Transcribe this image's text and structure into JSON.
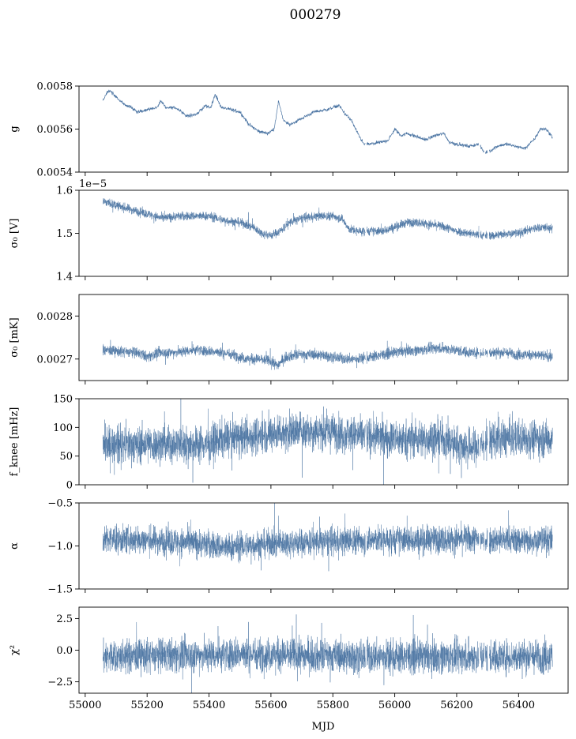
{
  "title": "000279",
  "xlabel": "MJD",
  "line_color": "#4c75a3",
  "chart_data": {
    "type": "line",
    "title": "000279",
    "xlabel": "MJD",
    "xlim": [
      54980,
      56560
    ],
    "xticks": [
      55000,
      55200,
      55400,
      55600,
      55800,
      56000,
      56200,
      56400
    ],
    "xtick_labels": [
      "55000",
      "55200",
      "55400",
      "55600",
      "55800",
      "56000",
      "56200",
      "56400"
    ],
    "x_range": [
      55057,
      56510
    ],
    "gaps": [
      [
        55905,
        55909
      ],
      [
        56272,
        56276
      ],
      [
        56289,
        56292
      ],
      [
        56300,
        56305
      ]
    ],
    "panels": [
      {
        "name": "g",
        "ylabel": "g",
        "ylim": [
          0.0054,
          0.0058
        ],
        "yticks": [
          0.0054,
          0.0056,
          0.0058
        ],
        "ytick_labels": [
          "0.0054",
          "0.0056",
          "0.0058"
        ],
        "offset_text": "",
        "noise": 4e-06,
        "keypoints": [
          [
            55057,
            0.00573
          ],
          [
            55070,
            0.00577
          ],
          [
            55080,
            0.00578
          ],
          [
            55100,
            0.00575
          ],
          [
            55130,
            0.00571
          ],
          [
            55150,
            0.0057
          ],
          [
            55170,
            0.00568
          ],
          [
            55200,
            0.00569
          ],
          [
            55230,
            0.0057
          ],
          [
            55245,
            0.00573
          ],
          [
            55260,
            0.0057
          ],
          [
            55290,
            0.0057
          ],
          [
            55310,
            0.00568
          ],
          [
            55330,
            0.00566
          ],
          [
            55360,
            0.00567
          ],
          [
            55390,
            0.00571
          ],
          [
            55405,
            0.0057
          ],
          [
            55420,
            0.00576
          ],
          [
            55440,
            0.0057
          ],
          [
            55470,
            0.00569
          ],
          [
            55500,
            0.00568
          ],
          [
            55530,
            0.00562
          ],
          [
            55560,
            0.00559
          ],
          [
            55590,
            0.00558
          ],
          [
            55610,
            0.0056
          ],
          [
            55625,
            0.00573
          ],
          [
            55640,
            0.00564
          ],
          [
            55660,
            0.00562
          ],
          [
            55700,
            0.00565
          ],
          [
            55740,
            0.00568
          ],
          [
            55780,
            0.00569
          ],
          [
            55820,
            0.00571
          ],
          [
            55840,
            0.00567
          ],
          [
            55860,
            0.00564
          ],
          [
            55880,
            0.00558
          ],
          [
            55900,
            0.00553
          ],
          [
            55920,
            0.00553
          ],
          [
            55960,
            0.00554
          ],
          [
            55980,
            0.00555
          ],
          [
            56000,
            0.0056
          ],
          [
            56020,
            0.00557
          ],
          [
            56040,
            0.00558
          ],
          [
            56060,
            0.00557
          ],
          [
            56080,
            0.00556
          ],
          [
            56100,
            0.00555
          ],
          [
            56130,
            0.00557
          ],
          [
            56160,
            0.00558
          ],
          [
            56175,
            0.00554
          ],
          [
            56200,
            0.00553
          ],
          [
            56240,
            0.00552
          ],
          [
            56270,
            0.00553
          ],
          [
            56290,
            0.00549
          ],
          [
            56310,
            0.0055
          ],
          [
            56330,
            0.00552
          ],
          [
            56360,
            0.00553
          ],
          [
            56390,
            0.00552
          ],
          [
            56420,
            0.00551
          ],
          [
            56450,
            0.00555
          ],
          [
            56470,
            0.0056
          ],
          [
            56490,
            0.0056
          ],
          [
            56510,
            0.00556
          ]
        ]
      },
      {
        "name": "sigma0-volts",
        "ylabel": "σ₀ [V]",
        "ylim": [
          1.4,
          1.6
        ],
        "yticks": [
          1.4,
          1.5,
          1.6
        ],
        "ytick_labels": [
          "1.4",
          "1.5",
          "1.6"
        ],
        "offset_text": "1e−5",
        "noise": 0.005,
        "keypoints": [
          [
            55057,
            1.575
          ],
          [
            55100,
            1.565
          ],
          [
            55150,
            1.555
          ],
          [
            55200,
            1.545
          ],
          [
            55250,
            1.535
          ],
          [
            55300,
            1.54
          ],
          [
            55350,
            1.54
          ],
          [
            55400,
            1.54
          ],
          [
            55450,
            1.53
          ],
          [
            55500,
            1.525
          ],
          [
            55540,
            1.515
          ],
          [
            55570,
            1.5
          ],
          [
            55600,
            1.495
          ],
          [
            55630,
            1.505
          ],
          [
            55660,
            1.525
          ],
          [
            55700,
            1.535
          ],
          [
            55750,
            1.54
          ],
          [
            55800,
            1.54
          ],
          [
            55830,
            1.535
          ],
          [
            55850,
            1.51
          ],
          [
            55880,
            1.505
          ],
          [
            55920,
            1.505
          ],
          [
            55960,
            1.505
          ],
          [
            56000,
            1.515
          ],
          [
            56040,
            1.525
          ],
          [
            56080,
            1.525
          ],
          [
            56120,
            1.52
          ],
          [
            56160,
            1.515
          ],
          [
            56200,
            1.505
          ],
          [
            56240,
            1.5
          ],
          [
            56280,
            1.495
          ],
          [
            56320,
            1.495
          ],
          [
            56360,
            1.5
          ],
          [
            56400,
            1.5
          ],
          [
            56440,
            1.51
          ],
          [
            56480,
            1.515
          ],
          [
            56510,
            1.51
          ]
        ]
      },
      {
        "name": "sigma0-mk",
        "ylabel": "σ₀ [mK]",
        "ylim": [
          0.00265,
          0.00285
        ],
        "yticks": [
          0.0027,
          0.0028
        ],
        "ytick_labels": [
          "0.0027",
          "0.0028"
        ],
        "offset_text": "",
        "noise": 6e-06,
        "keypoints": [
          [
            55057,
            0.002722
          ],
          [
            55100,
            0.002718
          ],
          [
            55150,
            0.002716
          ],
          [
            55180,
            0.002712
          ],
          [
            55200,
            0.002705
          ],
          [
            55240,
            0.002715
          ],
          [
            55280,
            0.002715
          ],
          [
            55320,
            0.002718
          ],
          [
            55360,
            0.002722
          ],
          [
            55400,
            0.002718
          ],
          [
            55440,
            0.002715
          ],
          [
            55480,
            0.00271
          ],
          [
            55520,
            0.0027
          ],
          [
            55560,
            0.0027
          ],
          [
            55600,
            0.002695
          ],
          [
            55620,
            0.002685
          ],
          [
            55650,
            0.002705
          ],
          [
            55680,
            0.00271
          ],
          [
            55720,
            0.00271
          ],
          [
            55760,
            0.00271
          ],
          [
            55800,
            0.002705
          ],
          [
            55840,
            0.0027
          ],
          [
            55880,
            0.0027
          ],
          [
            55920,
            0.002705
          ],
          [
            55960,
            0.00271
          ],
          [
            56000,
            0.002715
          ],
          [
            56040,
            0.00272
          ],
          [
            56080,
            0.00272
          ],
          [
            56120,
            0.002725
          ],
          [
            56160,
            0.002725
          ],
          [
            56200,
            0.00272
          ],
          [
            56240,
            0.002715
          ],
          [
            56280,
            0.002715
          ],
          [
            56320,
            0.002715
          ],
          [
            56360,
            0.002715
          ],
          [
            56400,
            0.00271
          ],
          [
            56440,
            0.00271
          ],
          [
            56480,
            0.002708
          ],
          [
            56510,
            0.002705
          ]
        ]
      },
      {
        "name": "fknee",
        "ylabel": "f_knee [mHz]",
        "ylim": [
          0,
          150
        ],
        "yticks": [
          0,
          50,
          100,
          150
        ],
        "ytick_labels": [
          "0",
          "50",
          "100",
          "150"
        ],
        "offset_text": "",
        "noise": 16,
        "keypoints": [
          [
            55057,
            70
          ],
          [
            55200,
            70
          ],
          [
            55400,
            72
          ],
          [
            55440,
            80
          ],
          [
            55550,
            85
          ],
          [
            55600,
            90
          ],
          [
            55700,
            95
          ],
          [
            55800,
            92
          ],
          [
            55900,
            85
          ],
          [
            55920,
            85
          ],
          [
            56000,
            80
          ],
          [
            56150,
            80
          ],
          [
            56200,
            70
          ],
          [
            56270,
            65
          ],
          [
            56300,
            78
          ],
          [
            56400,
            82
          ],
          [
            56510,
            80
          ]
        ]
      },
      {
        "name": "alpha",
        "ylabel": "α",
        "ylim": [
          -1.5,
          -0.5
        ],
        "yticks": [
          -1.5,
          -1.0,
          -0.5
        ],
        "ytick_labels": [
          "−1.5",
          "−1.0",
          "−0.5"
        ],
        "offset_text": "",
        "noise": 0.08,
        "keypoints": [
          [
            55057,
            -0.93
          ],
          [
            55200,
            -0.93
          ],
          [
            55400,
            -0.98
          ],
          [
            55450,
            -1.02
          ],
          [
            55600,
            -0.97
          ],
          [
            55800,
            -0.95
          ],
          [
            55900,
            -0.93
          ],
          [
            56000,
            -0.93
          ],
          [
            56200,
            -0.92
          ],
          [
            56400,
            -0.93
          ],
          [
            56510,
            -0.93
          ]
        ]
      },
      {
        "name": "chi2",
        "ylabel": "χ²",
        "ylim": [
          -3.4,
          3.4
        ],
        "yticks": [
          -2.5,
          0.0,
          2.5
        ],
        "ytick_labels": [
          "−2.5",
          "0.0",
          "2.5"
        ],
        "offset_text": "",
        "noise": 0.65,
        "keypoints": [
          [
            55057,
            -0.5
          ],
          [
            55300,
            -0.4
          ],
          [
            55500,
            -0.3
          ],
          [
            55700,
            -0.4
          ],
          [
            55900,
            -0.5
          ],
          [
            56100,
            -0.5
          ],
          [
            56300,
            -0.5
          ],
          [
            56510,
            -0.5
          ]
        ]
      }
    ]
  }
}
